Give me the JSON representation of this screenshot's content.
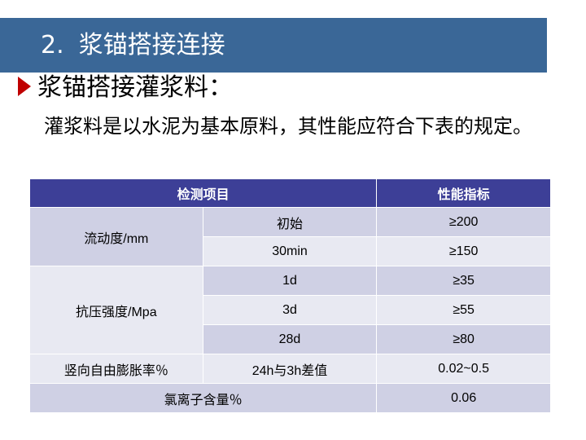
{
  "slide": {
    "number": "2.",
    "title": "浆锚搭接连接"
  },
  "bullet": {
    "heading": "浆锚搭接灌浆料："
  },
  "description": "灌浆料是以水泥为基本原料，其性能应符合下表的规定。",
  "table": {
    "headers": [
      "检测项目",
      "性能指标"
    ],
    "groups": {
      "flow": "流动度/mm",
      "compress": "抗压强度/Mpa"
    },
    "rows": [
      {
        "sub": "初始",
        "value": "≥200"
      },
      {
        "sub": "30min",
        "value": "≥150"
      },
      {
        "sub": "1d",
        "value": "≥35"
      },
      {
        "sub": "3d",
        "value": "≥55"
      },
      {
        "sub": "28d",
        "value": "≥80"
      },
      {
        "item": "竖向自由膨胀率％",
        "sub": "24h与3h差值",
        "value": "0.02~0.5"
      },
      {
        "item": "氯离子含量％",
        "value": "0.06"
      }
    ]
  },
  "colors": {
    "title_bar": "#3a6797",
    "table_header": "#3d3f97",
    "row_dark": "#cfd0e4",
    "row_light": "#e8e9f2",
    "bullet_arrow": "#c00000"
  }
}
